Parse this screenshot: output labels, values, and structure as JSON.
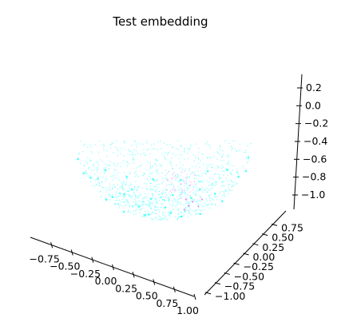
{
  "chart_data": {
    "type": "scatter",
    "projection": "3d",
    "title": "Test embedding",
    "xlabel": "",
    "ylabel": "",
    "zlabel": "",
    "grid": false,
    "legend": "none",
    "xlim": [
      -1.0,
      1.0
    ],
    "ylim": [
      -1.0,
      1.0
    ],
    "zlim": [
      -1.0,
      0.3
    ],
    "x_ticks": [
      -0.75,
      -0.5,
      -0.25,
      0.0,
      0.25,
      0.5,
      0.75,
      1.0
    ],
    "x_tick_labels": [
      "−0.75",
      "−0.50",
      "−0.25",
      "0.00",
      "0.25",
      "0.50",
      "0.75",
      "1.00"
    ],
    "y_ticks": [
      -1.0,
      -0.75,
      -0.5,
      -0.25,
      0.0,
      0.25,
      0.5,
      0.75
    ],
    "y_tick_labels": [
      "−1.00",
      "−0.75",
      "−0.50",
      "−0.25",
      "0.00",
      "0.25",
      "0.50",
      "0.75"
    ],
    "z_ticks": [
      -1.0,
      -0.8,
      -0.6,
      -0.4,
      -0.2,
      0.0,
      0.2
    ],
    "z_tick_labels": [
      "−1.0",
      "−0.8",
      "−0.6",
      "−0.4",
      "−0.2",
      "0.0",
      "0.2"
    ],
    "series": [
      {
        "color": "#00ffff",
        "points": [
          [
            0.05,
            -0.35,
            -0.9
          ],
          [
            -0.25,
            -0.3,
            -0.88
          ],
          [
            0.3,
            -0.2,
            -0.85
          ],
          [
            -0.55,
            -0.25,
            -0.75
          ],
          [
            0.6,
            -0.3,
            -0.72
          ],
          [
            -0.8,
            -0.2,
            -0.5
          ],
          [
            0.85,
            -0.15,
            -0.48
          ],
          [
            -0.1,
            -0.5,
            -0.82
          ],
          [
            0.15,
            -0.55,
            -0.78
          ],
          [
            -0.4,
            -0.45,
            -0.75
          ],
          [
            0.45,
            -0.5,
            -0.7
          ],
          [
            -0.7,
            -0.4,
            -0.55
          ],
          [
            0.75,
            -0.45,
            -0.45
          ],
          [
            -0.2,
            -0.1,
            -0.95
          ],
          [
            0.2,
            -0.05,
            -0.96
          ],
          [
            -0.45,
            0.05,
            -0.88
          ],
          [
            0.4,
            0.1,
            -0.9
          ],
          [
            -0.65,
            0.1,
            -0.72
          ],
          [
            0.65,
            0.05,
            -0.75
          ],
          [
            -0.9,
            0.05,
            -0.4
          ],
          [
            0.92,
            0.0,
            -0.38
          ],
          [
            -0.05,
            -0.75,
            -0.62
          ],
          [
            0.25,
            -0.7,
            -0.62
          ],
          [
            -0.35,
            -0.7,
            -0.58
          ],
          [
            -0.6,
            -0.6,
            -0.48
          ],
          [
            0.55,
            -0.65,
            -0.5
          ],
          [
            -0.95,
            -0.1,
            -0.25
          ],
          [
            0.95,
            -0.05,
            -0.22
          ],
          [
            -0.15,
            -0.2,
            -0.96
          ],
          [
            0.1,
            -0.25,
            -0.95
          ],
          [
            -0.3,
            -0.6,
            -0.72
          ],
          [
            0.35,
            -0.45,
            -0.8
          ]
        ]
      },
      {
        "color": "#ff66ff",
        "points": [
          [
            0.3,
            -0.25,
            -0.86
          ],
          [
            0.35,
            -0.3,
            -0.82
          ],
          [
            0.25,
            -0.2,
            -0.9
          ],
          [
            0.4,
            -0.15,
            -0.85
          ],
          [
            0.28,
            -0.35,
            -0.8
          ],
          [
            0.45,
            -0.25,
            -0.78
          ]
        ]
      }
    ]
  }
}
